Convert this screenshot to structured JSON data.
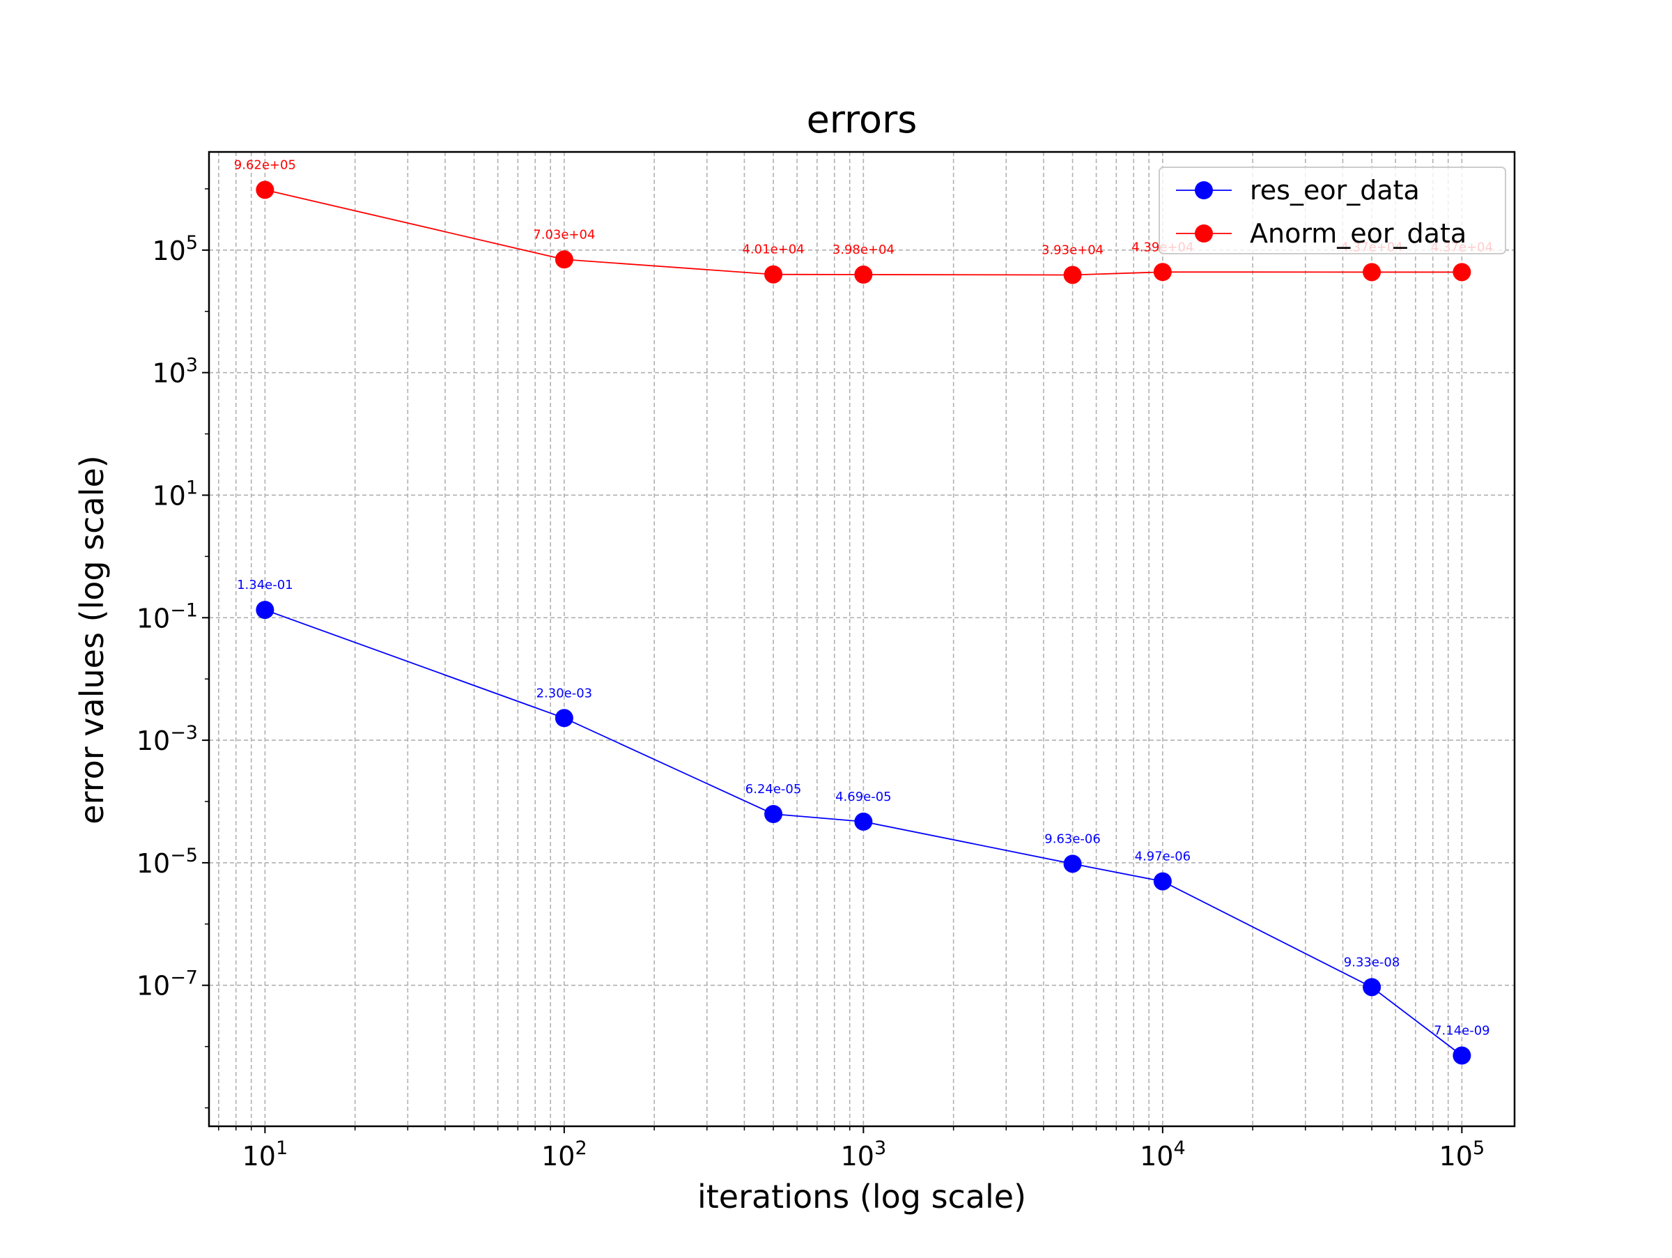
{
  "chart_data": {
    "type": "line",
    "title": "errors",
    "xlabel": "iterations (log scale)",
    "ylabel": "error values (log scale)",
    "xscale": "log",
    "yscale": "log",
    "xlim": [
      6.5,
      150000
    ],
    "ylim": [
      5e-10,
      4000000
    ],
    "x_ticks": [
      {
        "base": "10",
        "exp": "1"
      },
      {
        "base": "10",
        "exp": "2"
      },
      {
        "base": "10",
        "exp": "3"
      },
      {
        "base": "10",
        "exp": "4"
      },
      {
        "base": "10",
        "exp": "5"
      }
    ],
    "y_ticks": [
      {
        "base": "10",
        "exp": "5"
      },
      {
        "base": "10",
        "exp": "3"
      },
      {
        "base": "10",
        "exp": "1"
      },
      {
        "base": "10",
        "exp": "−1"
      },
      {
        "base": "10",
        "exp": "−3"
      },
      {
        "base": "10",
        "exp": "−5"
      },
      {
        "base": "10",
        "exp": "−7"
      }
    ],
    "grid": true,
    "legend_position": "top-right",
    "x": [
      10,
      100,
      500,
      1000,
      5000,
      10000,
      50000,
      100000
    ],
    "series": [
      {
        "name": "res_eor_data",
        "color": "#0000ff",
        "values": [
          0.134,
          0.0023,
          6.24e-05,
          4.69e-05,
          9.63e-06,
          4.97e-06,
          9.33e-08,
          7.14e-09
        ],
        "labels": [
          "1.34e-01",
          "2.30e-03",
          "6.24e-05",
          "4.69e-05",
          "9.63e-06",
          "4.97e-06",
          "9.33e-08",
          "7.14e-09"
        ]
      },
      {
        "name": "Anorm_eor_data",
        "color": "#ff0000",
        "values": [
          962000,
          70300,
          40100,
          39800,
          39300,
          43900,
          43700,
          43700
        ],
        "labels": [
          "9.62e+05",
          "7.03e+04",
          "4.01e+04",
          "3.98e+04",
          "3.93e+04",
          "4.39e+04",
          "4.37e+04",
          "4.37e+04"
        ]
      }
    ]
  }
}
